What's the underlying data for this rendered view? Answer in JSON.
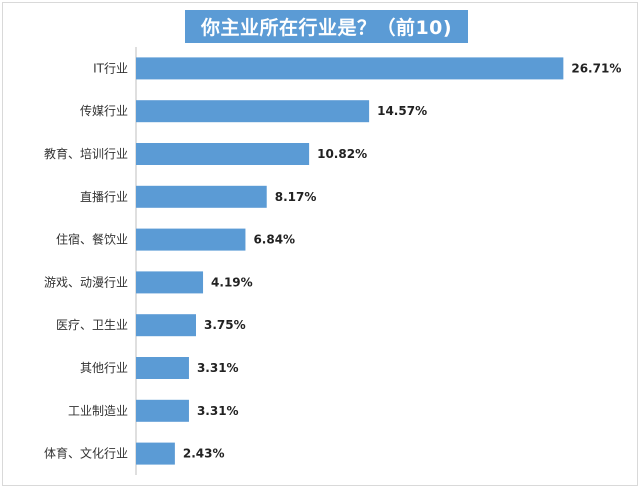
{
  "chart_data": {
    "type": "bar",
    "orientation": "horizontal",
    "title": "你主业所在行业是？（前10)",
    "categories": [
      "IT行业",
      "传媒行业",
      "教育、培训行业",
      "直播行业",
      "住宿、餐饮业",
      "游戏、动漫行业",
      "医疗、卫生业",
      "其他行业",
      "工业制造业",
      "体育、文化行业"
    ],
    "values": [
      26.71,
      14.57,
      10.82,
      8.17,
      6.84,
      4.19,
      3.75,
      3.31,
      3.31,
      2.43
    ],
    "value_labels": [
      "26.71%",
      "14.57%",
      "10.82%",
      "8.17%",
      "6.84%",
      "4.19%",
      "3.75%",
      "3.31%",
      "3.31%",
      "2.43%"
    ],
    "xlim": [
      0,
      30
    ],
    "grid": false,
    "bar_color": "#5b9bd5",
    "title_background": "#5b9bd5"
  }
}
